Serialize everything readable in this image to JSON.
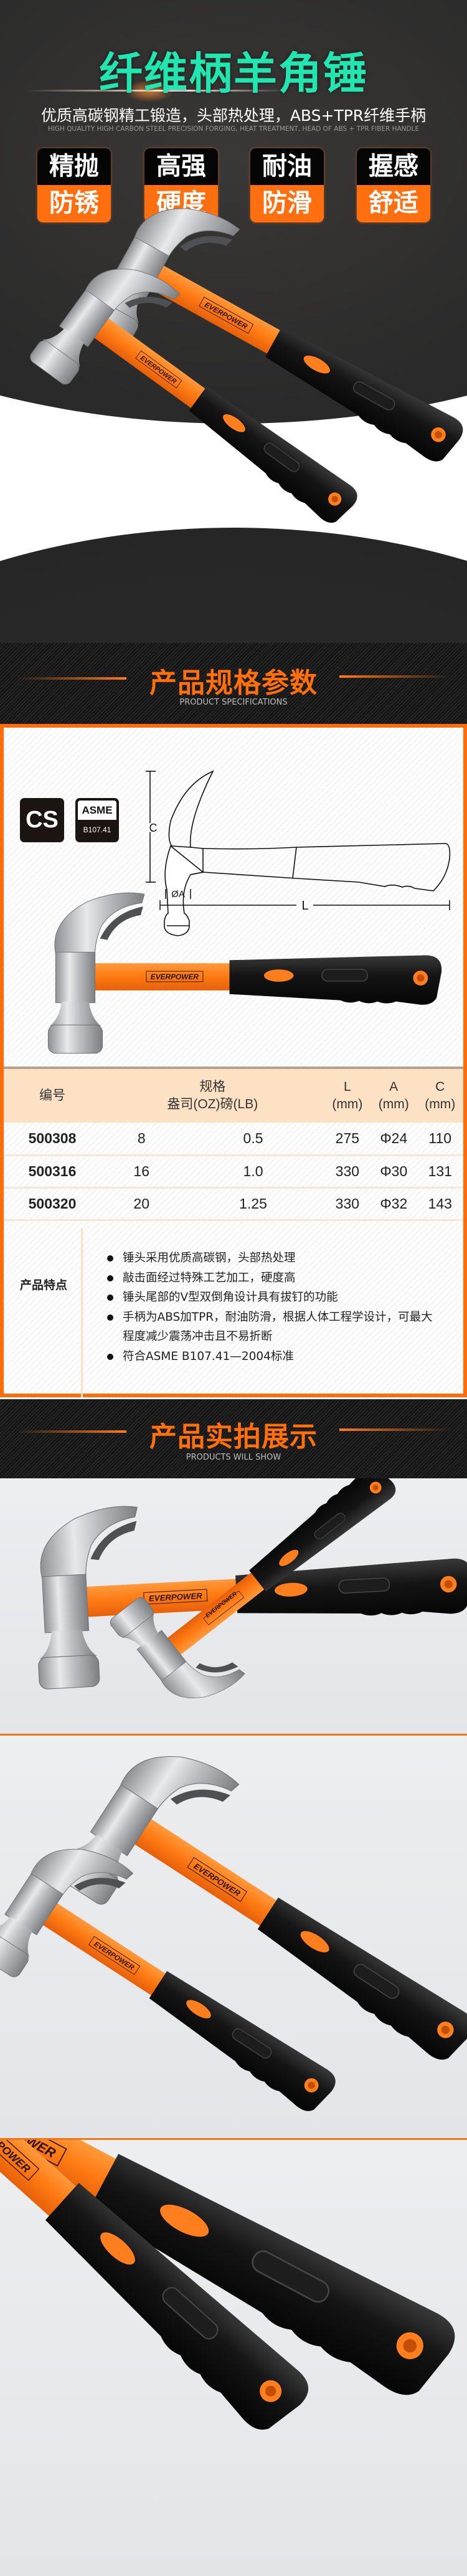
{
  "hero": {
    "title": "纤维柄羊角锤",
    "subtitle": "优质高碳钢精工锻造，头部热处理，ABS+TPR纤维手柄",
    "subtitle_en": "HIGH QUALITY HIGH CARBON STEEL PRECISION FORGING, HEAT TREATMENT, HEAD OF ABS + TPR FIBER HANDLE",
    "badges": [
      {
        "top": "精抛",
        "bottom": "防锈"
      },
      {
        "top": "高强",
        "bottom": "硬度"
      },
      {
        "top": "耐油",
        "bottom": "防滑"
      },
      {
        "top": "握感",
        "bottom": "舒适"
      }
    ]
  },
  "brand": "EVERPOWER",
  "colors": {
    "accent": "#ff6c0a",
    "title_teal": "#22e6b0",
    "dark": "#1a1a1a"
  },
  "spec": {
    "title": "产品规格参数",
    "subtitle": "PRODUCT SPECIFICATIONS",
    "material_badge": "CS",
    "standard_badge": {
      "top": "ASME",
      "bottom": "B107.41"
    },
    "diagram": {
      "height_label": "C",
      "diameter_label": "ØA",
      "length_label": "L"
    },
    "table": {
      "headers": {
        "id": "编号",
        "spec": "规格",
        "spec_units": "盎司(OZ)磅(LB)",
        "L": "L",
        "A": "A",
        "C": "C",
        "unit": "(mm)"
      },
      "rows": [
        [
          "500308",
          "8",
          "0.5",
          "275",
          "Φ24",
          "110"
        ],
        [
          "500316",
          "16",
          "1.0",
          "330",
          "Φ30",
          "131"
        ],
        [
          "500320",
          "20",
          "1.25",
          "330",
          "Φ32",
          "143"
        ]
      ]
    },
    "features_label": "产品特点",
    "features": [
      "锤头采用优质高碳钢，头部热处理",
      "敲击面经过特殊工艺加工，硬度高",
      "锤头尾部的V型双倒角设计具有拔钉的功能",
      "手柄为ABS加TPR，耐油防滑，根据人体工程学设计，可最大程度减少震荡冲击且不易折断",
      "符合ASME B107.41—2004标准"
    ]
  },
  "show": {
    "title": "产品实拍展示",
    "subtitle": "PRODUCTS WILL SHOW"
  }
}
